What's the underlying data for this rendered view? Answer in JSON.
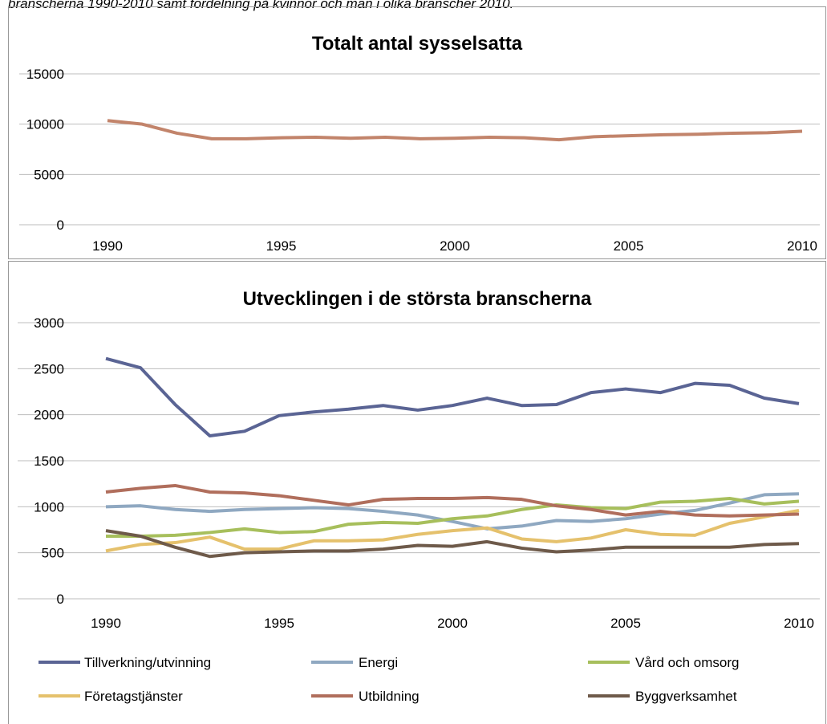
{
  "caption": "branscherna 1990-2010 samt fördelning på kvinnor och män i olika branscher 2010.",
  "chart_data": [
    {
      "type": "line",
      "title": "Totalt antal sysselsatta",
      "x": [
        1990,
        1991,
        1992,
        1993,
        1994,
        1995,
        1996,
        1997,
        1998,
        1999,
        2000,
        2001,
        2002,
        2003,
        2004,
        2005,
        2006,
        2007,
        2008,
        2009,
        2010
      ],
      "xlim": [
        1990,
        2010
      ],
      "xticks": [
        1990,
        1995,
        2000,
        2005,
        2010
      ],
      "ylim": [
        0,
        15000
      ],
      "yticks": [
        0,
        5000,
        10000,
        15000
      ],
      "grid": true,
      "series": [
        {
          "color": "#c2846b",
          "values": [
            10350,
            10000,
            9100,
            8550,
            8550,
            8650,
            8700,
            8600,
            8700,
            8550,
            8600,
            8700,
            8650,
            8450,
            8750,
            8850,
            8950,
            9000,
            9100,
            9150,
            9300
          ]
        }
      ]
    },
    {
      "type": "line",
      "title": "Utvecklingen i de största branscherna",
      "x": [
        1990,
        1991,
        1992,
        1993,
        1994,
        1995,
        1996,
        1997,
        1998,
        1999,
        2000,
        2001,
        2002,
        2003,
        2004,
        2005,
        2006,
        2007,
        2008,
        2009,
        2010
      ],
      "xlim": [
        1990,
        2010
      ],
      "xticks": [
        1990,
        1995,
        2000,
        2005,
        2010
      ],
      "ylim": [
        0,
        3000
      ],
      "yticks": [
        0,
        500,
        1000,
        1500,
        2000,
        2500,
        3000
      ],
      "grid": true,
      "legend": "bottom",
      "series": [
        {
          "name": "Tillverkning/utvinning",
          "color": "#5a6494",
          "values": [
            2610,
            2510,
            2110,
            1770,
            1820,
            1990,
            2030,
            2060,
            2100,
            2050,
            2100,
            2180,
            2100,
            2110,
            2240,
            2280,
            2240,
            2340,
            2320,
            2180,
            2120
          ]
        },
        {
          "name": "Energi",
          "color": "#8fa8c1",
          "values": [
            1000,
            1010,
            970,
            950,
            970,
            980,
            990,
            980,
            950,
            910,
            840,
            760,
            790,
            850,
            840,
            870,
            920,
            960,
            1040,
            1130,
            1140
          ]
        },
        {
          "name": "Vård och omsorg",
          "color": "#a7bf5c",
          "values": [
            680,
            680,
            690,
            720,
            760,
            720,
            730,
            810,
            830,
            820,
            870,
            900,
            970,
            1020,
            990,
            980,
            1050,
            1060,
            1090,
            1030,
            1060
          ]
        },
        {
          "name": "Företagstjänster",
          "color": "#e5c16c",
          "values": [
            520,
            590,
            610,
            670,
            540,
            540,
            630,
            630,
            640,
            700,
            740,
            770,
            650,
            620,
            660,
            750,
            700,
            690,
            820,
            890,
            960
          ]
        },
        {
          "name": "Utbildning",
          "color": "#b06e5c",
          "values": [
            1160,
            1200,
            1230,
            1160,
            1150,
            1120,
            1070,
            1020,
            1080,
            1090,
            1090,
            1100,
            1080,
            1010,
            970,
            910,
            950,
            910,
            900,
            910,
            920
          ]
        },
        {
          "name": "Byggverksamhet",
          "color": "#6e5a4a",
          "values": [
            740,
            680,
            560,
            460,
            500,
            510,
            520,
            520,
            540,
            580,
            570,
            620,
            550,
            510,
            530,
            560,
            560,
            560,
            560,
            590,
            600
          ]
        }
      ]
    }
  ]
}
